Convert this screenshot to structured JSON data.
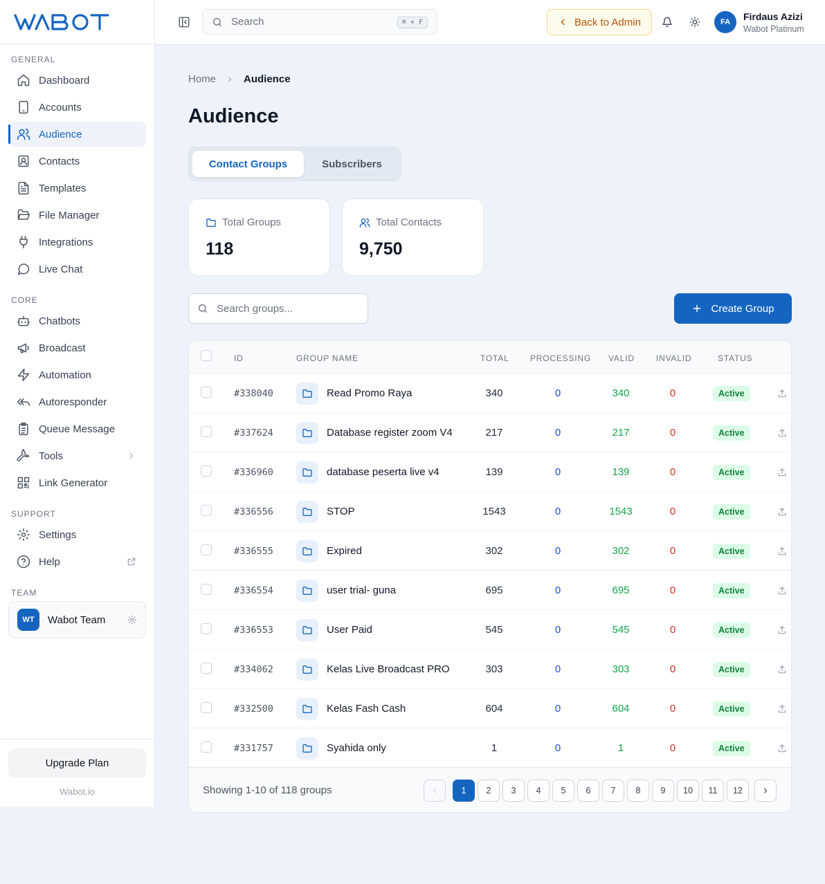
{
  "brand": {
    "logo_text": "WABOT"
  },
  "sidebar": {
    "sections": [
      "GENERAL",
      "CORE",
      "SUPPORT",
      "TEAM"
    ],
    "items": [
      {
        "label": "Dashboard",
        "icon": "home-icon"
      },
      {
        "label": "Accounts",
        "icon": "phone-icon"
      },
      {
        "label": "Audience",
        "icon": "users-icon",
        "active": true
      },
      {
        "label": "Contacts",
        "icon": "contact-card-icon"
      },
      {
        "label": "Templates",
        "icon": "file-text-icon"
      },
      {
        "label": "File Manager",
        "icon": "folder-open-icon"
      },
      {
        "label": "Integrations",
        "icon": "plug-icon"
      },
      {
        "label": "Live Chat",
        "icon": "chat-bubble-icon"
      },
      {
        "label": "Chatbots",
        "icon": "bot-icon"
      },
      {
        "label": "Broadcast",
        "icon": "megaphone-icon"
      },
      {
        "label": "Automation",
        "icon": "zap-icon"
      },
      {
        "label": "Autoresponder",
        "icon": "reply-all-icon"
      },
      {
        "label": "Queue Message",
        "icon": "clipboard-list-icon"
      },
      {
        "label": "Tools",
        "icon": "wrench-icon"
      },
      {
        "label": "Link Generator",
        "icon": "qr-code-icon"
      },
      {
        "label": "Settings",
        "icon": "gear-icon"
      },
      {
        "label": "Help",
        "icon": "help-circle-icon"
      }
    ],
    "team": {
      "initials": "WT",
      "name": "Wabot Team"
    },
    "upgrade_label": "Upgrade Plan",
    "footer": "Wabot.io"
  },
  "header": {
    "search_placeholder": "Search",
    "search_shortcut": "⌘ + F",
    "back_label": "Back to Admin",
    "user": {
      "initials": "FA",
      "name": "Firdaus Azizi",
      "plan": "Wabot Platinum"
    }
  },
  "breadcrumb": {
    "home": "Home",
    "current": "Audience"
  },
  "page": {
    "title": "Audience"
  },
  "tabs": [
    "Contact Groups",
    "Subscribers"
  ],
  "stats": [
    {
      "label": "Total Groups",
      "value": "118",
      "icon": "folder-icon"
    },
    {
      "label": "Total Contacts",
      "value": "9,750",
      "icon": "users-icon"
    }
  ],
  "group_search_placeholder": "Search groups...",
  "create_label": "Create Group",
  "table": {
    "columns": [
      "ID",
      "GROUP NAME",
      "TOTAL",
      "PROCESSING",
      "VALID",
      "INVALID",
      "STATUS"
    ],
    "rows": [
      {
        "id": "#338040",
        "name": "Read Promo Raya",
        "total": "340",
        "processing": "0",
        "valid": "340",
        "invalid": "0",
        "status": "Active"
      },
      {
        "id": "#337624",
        "name": "Database register zoom V4",
        "total": "217",
        "processing": "0",
        "valid": "217",
        "invalid": "0",
        "status": "Active"
      },
      {
        "id": "#336960",
        "name": "database peserta live v4",
        "total": "139",
        "processing": "0",
        "valid": "139",
        "invalid": "0",
        "status": "Active"
      },
      {
        "id": "#336556",
        "name": "STOP",
        "total": "1543",
        "processing": "0",
        "valid": "1543",
        "invalid": "0",
        "status": "Active"
      },
      {
        "id": "#336555",
        "name": "Expired",
        "total": "302",
        "processing": "0",
        "valid": "302",
        "invalid": "0",
        "status": "Active"
      },
      {
        "id": "#336554",
        "name": "user trial- guna",
        "total": "695",
        "processing": "0",
        "valid": "695",
        "invalid": "0",
        "status": "Active"
      },
      {
        "id": "#336553",
        "name": "User Paid",
        "total": "545",
        "processing": "0",
        "valid": "545",
        "invalid": "0",
        "status": "Active"
      },
      {
        "id": "#334062",
        "name": "Kelas Live Broadcast PRO",
        "total": "303",
        "processing": "0",
        "valid": "303",
        "invalid": "0",
        "status": "Active"
      },
      {
        "id": "#332500",
        "name": "Kelas Fash Cash",
        "total": "604",
        "processing": "0",
        "valid": "604",
        "invalid": "0",
        "status": "Active"
      },
      {
        "id": "#331757",
        "name": "Syahida only",
        "total": "1",
        "processing": "0",
        "valid": "1",
        "invalid": "0",
        "status": "Active"
      }
    ],
    "showing": "Showing 1-10 of 118 groups",
    "pages": [
      "1",
      "2",
      "3",
      "4",
      "5",
      "6",
      "7",
      "8",
      "9",
      "10",
      "11",
      "12"
    ],
    "current_page": "1"
  },
  "colors": {
    "accent": "#1565c0",
    "valid": "#16a34a",
    "invalid": "#dc2626",
    "processing": "#1d4ed8"
  }
}
